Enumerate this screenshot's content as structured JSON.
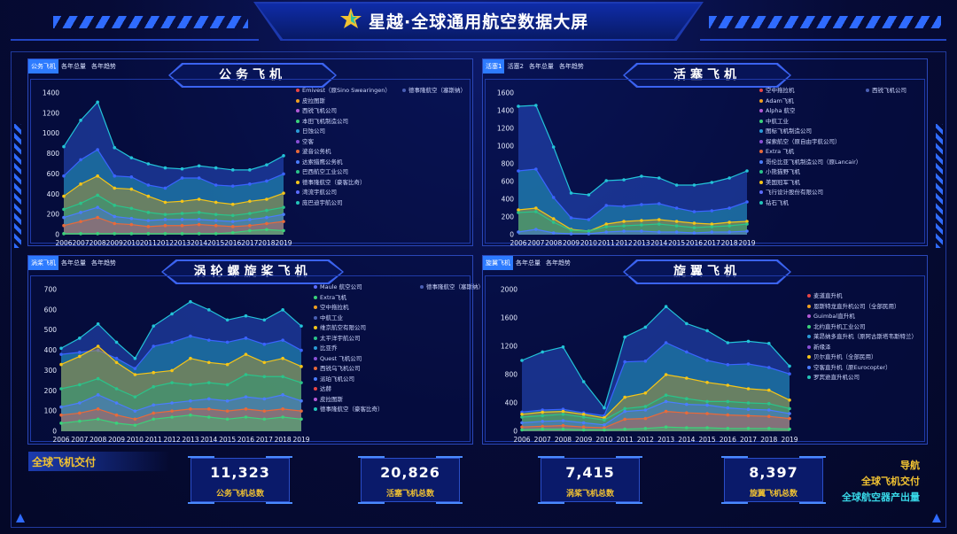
{
  "header": {
    "title": "星越·全球通用航空数据大屏"
  },
  "panels": {
    "business": {
      "tabs": [
        "公务飞机",
        "各年总量",
        "各年趋势"
      ],
      "title": "公务飞机",
      "legend": [
        {
          "label": "Emivest（原Sino Swearingen）",
          "color": "#e84545"
        },
        {
          "label": "德事隆航空（塞斯纳）",
          "color": "#4a5fb5"
        },
        {
          "label": "皮拉图斯",
          "color": "#f0a020"
        },
        {
          "label": "西锐飞机公司",
          "color": "#b45ad8"
        },
        {
          "label": "本田飞机制造公司",
          "color": "#3ad27a"
        },
        {
          "label": "日蚀公司",
          "color": "#2a9cd8"
        },
        {
          "label": "空客",
          "color": "#8a4fd8"
        },
        {
          "label": "波音公务机",
          "color": "#e86a3a"
        },
        {
          "label": "达索猎鹰公务机",
          "color": "#4a7cff"
        },
        {
          "label": "巴西航空工业公司",
          "color": "#2ac48a"
        },
        {
          "label": "德事隆航空（豪客比奇）",
          "color": "#f5c518"
        },
        {
          "label": "湾流宇航公司",
          "color": "#5b6cff"
        },
        {
          "label": "庞巴迪宇航公司",
          "color": "#22c4b8"
        }
      ]
    },
    "piston": {
      "tabs": [
        "活塞1",
        "活塞2",
        "各年总量",
        "各年趋势"
      ],
      "title": "活塞飞机",
      "legend": [
        {
          "label": "空中拖拉机",
          "color": "#e84545"
        },
        {
          "label": "西锐飞机公司",
          "color": "#4a5fb5"
        },
        {
          "label": "Adam飞机",
          "color": "#f0a020"
        },
        {
          "label": "Alpha 航空",
          "color": "#b45ad8"
        },
        {
          "label": "中航工业",
          "color": "#3ad27a"
        },
        {
          "label": "图标飞机制造公司",
          "color": "#2a9cd8"
        },
        {
          "label": "探索航空（原自由宇航公司）",
          "color": "#8a4fd8"
        },
        {
          "label": "Extra 飞机",
          "color": "#e86a3a"
        },
        {
          "label": "哥伦比亚飞机制造公司（原Lancair）",
          "color": "#4a7cff"
        },
        {
          "label": "小熊猫野飞机",
          "color": "#2ac48a"
        },
        {
          "label": "美国冠军飞机",
          "color": "#f5c518"
        },
        {
          "label": "飞行设计股份有限公司",
          "color": "#5b6cff"
        },
        {
          "label": "钻石飞机",
          "color": "#22c4b8"
        }
      ]
    },
    "turboprop": {
      "tabs": [
        "涡桨飞机",
        "各年总量",
        "各年趋势"
      ],
      "title": "涡轮螺旋桨飞机",
      "legend": [
        {
          "label": "Maule 航空公司",
          "color": "#5b6cff"
        },
        {
          "label": "德事隆航空（塞斯纳）",
          "color": "#4a5fb5"
        },
        {
          "label": "Extra飞机",
          "color": "#3ad27a"
        },
        {
          "label": "空中拖拉机",
          "color": "#f0a020"
        },
        {
          "label": "中航工业",
          "color": "#4a5fb5"
        },
        {
          "label": "维京航空有限公司",
          "color": "#f5c518"
        },
        {
          "label": "太平洋宇航公司",
          "color": "#2ac48a"
        },
        {
          "label": "比亚乔",
          "color": "#2a9cd8"
        },
        {
          "label": "Quest 飞机公司",
          "color": "#8a4fd8"
        },
        {
          "label": "西锐乌飞机公司",
          "color": "#e86a3a"
        },
        {
          "label": "派珀飞机公司",
          "color": "#4a7cff"
        },
        {
          "label": "达赫",
          "color": "#e84545"
        },
        {
          "label": "皮拉图斯",
          "color": "#b45ad8"
        },
        {
          "label": "德事隆航空（豪客比奇）",
          "color": "#22c4b8"
        }
      ]
    },
    "rotor": {
      "tabs": [
        "旋翼飞机",
        "各年总量",
        "各年趋势"
      ],
      "title": "旋翼飞机",
      "legend": [
        {
          "label": "麦道直升机",
          "color": "#e84545"
        },
        {
          "label": "恩斯特龙直升机公司（全部民用）",
          "color": "#f0a020"
        },
        {
          "label": "Guimbal直升机",
          "color": "#b45ad8"
        },
        {
          "label": "北约直升机工业公司",
          "color": "#3ad27a"
        },
        {
          "label": "莱昂纳多直升机（原阿古斯塔韦斯特兰）",
          "color": "#2a9cd8"
        },
        {
          "label": "新缘泽",
          "color": "#8a4fd8"
        },
        {
          "label": "贝尔直升机（全部民用）",
          "color": "#f5c518"
        },
        {
          "label": "空客直升机（原Eurocopter）",
          "color": "#4a7cff"
        },
        {
          "label": "罗宾逊直升机公司",
          "color": "#22c4b8"
        }
      ]
    }
  },
  "chart_data": [
    {
      "type": "area",
      "title": "公务飞机",
      "x": [
        2006,
        2007,
        2008,
        2009,
        2010,
        2011,
        2012,
        2013,
        2014,
        2015,
        2016,
        2017,
        2018,
        2019
      ],
      "ylim": [
        0,
        1400
      ],
      "yticks": [
        0,
        200,
        400,
        600,
        800,
        1000,
        1200,
        1400
      ],
      "series": [
        {
          "name": "庞巴迪宇航公司",
          "values": [
            870,
            1130,
            1310,
            860,
            760,
            700,
            660,
            650,
            680,
            660,
            640,
            640,
            690,
            780
          ]
        },
        {
          "name": "湾流宇航公司",
          "values": [
            580,
            740,
            840,
            580,
            570,
            490,
            460,
            560,
            560,
            490,
            480,
            500,
            530,
            600
          ]
        },
        {
          "name": "德事隆航空（豪客比奇）",
          "values": [
            380,
            500,
            580,
            460,
            450,
            380,
            320,
            330,
            350,
            320,
            300,
            330,
            350,
            410
          ]
        },
        {
          "name": "巴西航空工业公司",
          "values": [
            250,
            310,
            390,
            290,
            260,
            220,
            200,
            210,
            220,
            200,
            190,
            210,
            240,
            270
          ]
        },
        {
          "name": "达索猎鹰公务机",
          "values": [
            170,
            220,
            270,
            180,
            160,
            140,
            150,
            150,
            150,
            140,
            130,
            150,
            170,
            200
          ]
        },
        {
          "name": "波音公务机",
          "values": [
            90,
            130,
            170,
            110,
            100,
            80,
            90,
            90,
            100,
            90,
            80,
            90,
            110,
            130
          ]
        },
        {
          "name": "本田飞机制造公司",
          "values": [
            10,
            10,
            10,
            10,
            10,
            10,
            10,
            10,
            10,
            10,
            20,
            40,
            50,
            40
          ]
        }
      ]
    },
    {
      "type": "area",
      "title": "活塞飞机",
      "x": [
        2006,
        2007,
        2008,
        2009,
        2010,
        2011,
        2012,
        2013,
        2014,
        2015,
        2016,
        2017,
        2018,
        2019
      ],
      "ylim": [
        0,
        1600
      ],
      "yticks": [
        0,
        200,
        400,
        600,
        800,
        1000,
        1200,
        1400,
        1600
      ],
      "series": [
        {
          "name": "钻石飞机",
          "values": [
            1450,
            1460,
            990,
            470,
            450,
            610,
            620,
            660,
            640,
            560,
            560,
            590,
            640,
            720
          ]
        },
        {
          "name": "飞行设计股份有限公司",
          "values": [
            720,
            740,
            420,
            190,
            170,
            330,
            320,
            340,
            350,
            300,
            260,
            270,
            300,
            370
          ]
        },
        {
          "name": "美国冠军飞机",
          "values": [
            280,
            300,
            180,
            60,
            40,
            120,
            150,
            160,
            170,
            150,
            130,
            120,
            140,
            150
          ]
        },
        {
          "name": "小熊猫野飞机",
          "values": [
            250,
            260,
            140,
            50,
            40,
            90,
            100,
            110,
            120,
            100,
            80,
            90,
            100,
            120
          ]
        },
        {
          "name": "空中拖拉机",
          "values": [
            30,
            60,
            20,
            10,
            10,
            30,
            40,
            40,
            30,
            30,
            20,
            30,
            30,
            40
          ]
        }
      ]
    },
    {
      "type": "area",
      "title": "涡轮螺旋桨飞机",
      "x": [
        2006,
        2007,
        2008,
        2009,
        2010,
        2011,
        2012,
        2013,
        2014,
        2015,
        2016,
        2017,
        2018,
        2019
      ],
      "ylim": [
        0,
        700
      ],
      "yticks": [
        0,
        100,
        200,
        300,
        400,
        500,
        600,
        700
      ],
      "series": [
        {
          "name": "空中拖拉机",
          "values": [
            410,
            460,
            530,
            440,
            360,
            520,
            580,
            640,
            600,
            550,
            570,
            550,
            600,
            520
          ]
        },
        {
          "name": "德事隆航空（塞斯纳）",
          "values": [
            380,
            390,
            400,
            360,
            310,
            420,
            440,
            470,
            450,
            440,
            460,
            430,
            450,
            400
          ]
        },
        {
          "name": "德事隆航空（豪客比奇）",
          "values": [
            330,
            370,
            420,
            340,
            280,
            290,
            300,
            360,
            340,
            330,
            380,
            340,
            360,
            320
          ]
        },
        {
          "name": "Maule 航空公司",
          "values": [
            210,
            230,
            260,
            210,
            170,
            220,
            240,
            230,
            240,
            230,
            280,
            270,
            270,
            240
          ]
        },
        {
          "name": "皮拉图斯",
          "values": [
            120,
            140,
            180,
            140,
            100,
            130,
            140,
            150,
            160,
            150,
            170,
            160,
            180,
            150
          ]
        },
        {
          "name": "达赫",
          "values": [
            80,
            90,
            110,
            80,
            60,
            90,
            100,
            110,
            110,
            100,
            110,
            100,
            110,
            100
          ]
        },
        {
          "name": "西锐乌飞机公司",
          "values": [
            40,
            50,
            60,
            40,
            30,
            60,
            70,
            80,
            70,
            60,
            70,
            60,
            70,
            60
          ]
        }
      ]
    },
    {
      "type": "area",
      "title": "旋翼飞机",
      "x": [
        2006,
        2007,
        2008,
        2009,
        2010,
        2011,
        2012,
        2013,
        2014,
        2015,
        2016,
        2017,
        2018,
        2019
      ],
      "ylim": [
        0,
        2000
      ],
      "yticks": [
        0,
        400,
        800,
        1200,
        1600,
        2000
      ],
      "series": [
        {
          "name": "罗宾逊直升机公司",
          "values": [
            1000,
            1120,
            1190,
            700,
            330,
            1330,
            1470,
            1760,
            1520,
            1420,
            1250,
            1270,
            1240,
            920
          ]
        },
        {
          "name": "空客直升机（原Eurocopter）",
          "values": [
            270,
            300,
            310,
            260,
            220,
            980,
            990,
            1250,
            1120,
            1000,
            940,
            950,
            900,
            810
          ]
        },
        {
          "name": "贝尔直升机（全部民用）",
          "values": [
            240,
            270,
            280,
            240,
            190,
            480,
            540,
            800,
            750,
            690,
            650,
            600,
            580,
            440
          ]
        },
        {
          "name": "新缘泽",
          "values": [
            200,
            220,
            240,
            200,
            160,
            320,
            350,
            510,
            460,
            420,
            420,
            400,
            390,
            320
          ]
        },
        {
          "name": "北约直升机工业公司",
          "values": [
            120,
            140,
            150,
            120,
            90,
            280,
            300,
            420,
            380,
            370,
            330,
            310,
            300,
            250
          ]
        },
        {
          "name": "莱昂纳多直升机（原阿古斯塔韦斯特兰）",
          "values": [
            60,
            70,
            80,
            60,
            50,
            170,
            180,
            280,
            260,
            250,
            230,
            220,
            210,
            180
          ]
        },
        {
          "name": "麦道直升机",
          "values": [
            20,
            30,
            30,
            20,
            20,
            30,
            40,
            60,
            50,
            50,
            40,
            40,
            40,
            30
          ]
        }
      ]
    }
  ],
  "bottom": {
    "section_label": "全球飞机交付",
    "stats": [
      {
        "value": "11,323",
        "label": "公务飞机总数"
      },
      {
        "value": "20,826",
        "label": "活塞飞机总数"
      },
      {
        "value": "7,415",
        "label": "涡桨飞机总数"
      },
      {
        "value": "8,397",
        "label": "旋翼飞机总数"
      }
    ],
    "nav": [
      {
        "label": "导航",
        "color": "#f1c232"
      },
      {
        "label": "全球飞机交付",
        "color": "#f1c232"
      },
      {
        "label": "全球航空器产出量",
        "color": "#38d8e8"
      }
    ]
  },
  "colors": {
    "accent": "#2d7bff",
    "gold": "#f1c232",
    "cyan": "#38d8e8",
    "background": "#060b36"
  }
}
